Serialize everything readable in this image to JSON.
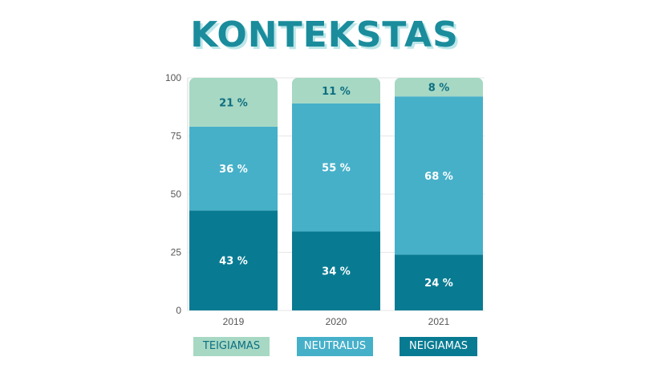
{
  "colors": {
    "teigiamas": "#a6d8c4",
    "neutralus": "#46b0c9",
    "neigiamas": "#087b92",
    "title": "#1a8c9c"
  },
  "chart_data": {
    "type": "bar",
    "stacked": true,
    "title": "KONTEKSTAS",
    "categories": [
      "2019",
      "2020",
      "2021"
    ],
    "ylim": [
      0,
      100
    ],
    "yticks": [
      "0",
      "25",
      "50",
      "75",
      "100"
    ],
    "grid": true,
    "legend_position": "bottom",
    "series": [
      {
        "name": "NEIGIAMAS",
        "values": [
          43,
          34,
          24
        ],
        "labels": [
          "43 %",
          "34 %",
          "24 %"
        ]
      },
      {
        "name": "NEUTRALUS",
        "values": [
          36,
          55,
          68
        ],
        "labels": [
          "36 %",
          "55 %",
          "68 %"
        ]
      },
      {
        "name": "TEIGIAMAS",
        "values": [
          21,
          11,
          8
        ],
        "labels": [
          "21 %",
          "11 %",
          "8 %"
        ]
      }
    ]
  }
}
